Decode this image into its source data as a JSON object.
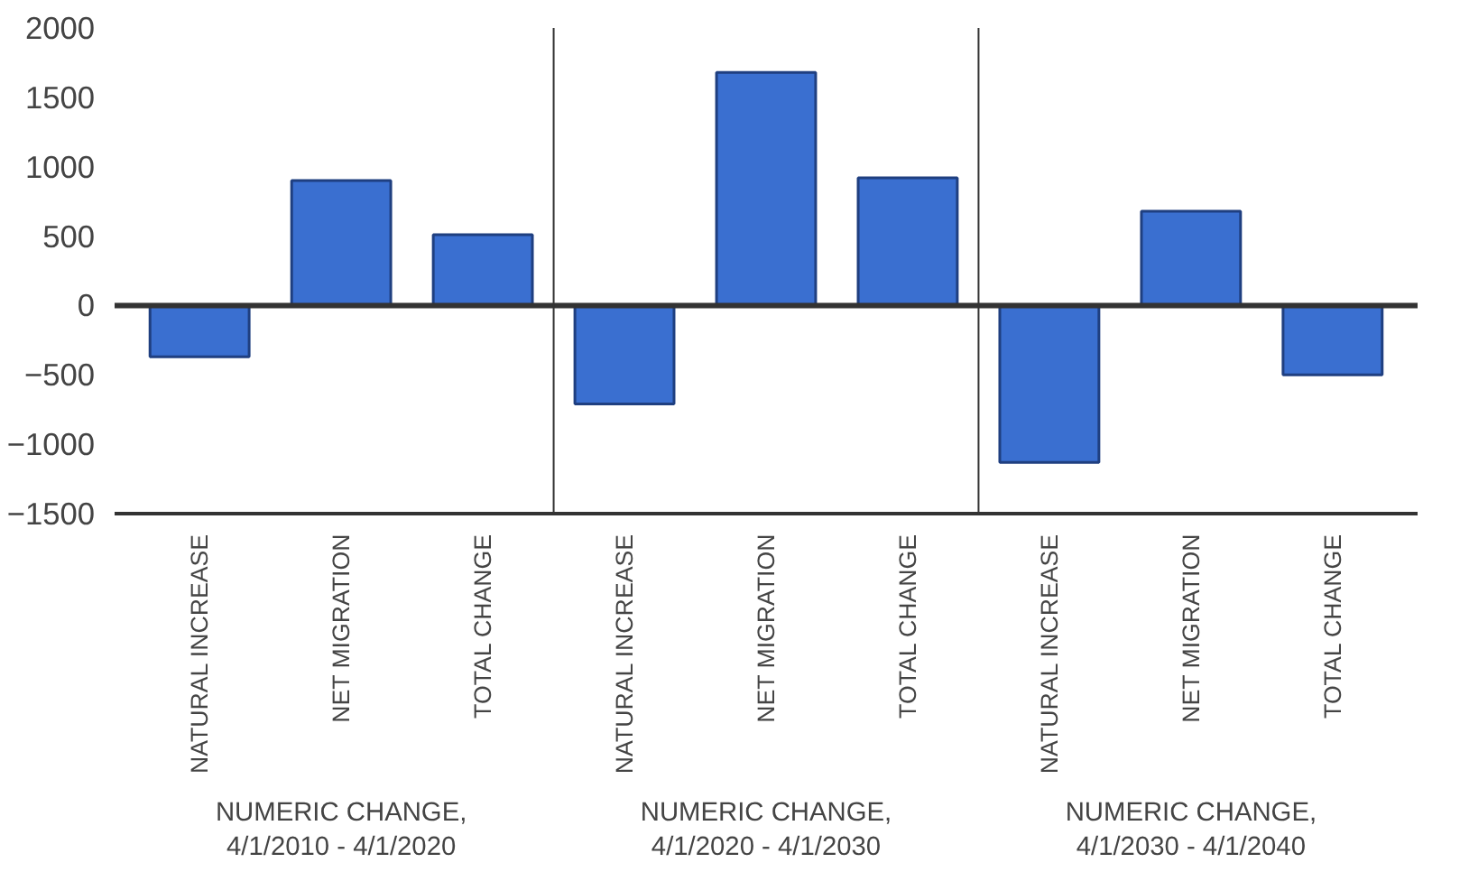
{
  "chart_data": {
    "type": "bar",
    "categories": [
      "NATURAL INCREASE",
      "NET MIGRATION",
      "TOTAL CHANGE",
      "NATURAL INCREASE",
      "NET MIGRATION",
      "TOTAL CHANGE",
      "NATURAL INCREASE",
      "NET MIGRATION",
      "TOTAL CHANGE"
    ],
    "values": [
      -370,
      900,
      510,
      -710,
      1680,
      920,
      -1130,
      680,
      -500
    ],
    "color": "#3a6fd0",
    "ylim": [
      -1500,
      2000
    ],
    "yticks": [
      -1500,
      -1000,
      -500,
      0,
      500,
      1000,
      1500,
      2000
    ],
    "grid": false,
    "annotations": [
      "NUMERIC CHANGE,\n4/1/2010 - 4/1/2020",
      "NUMERIC CHANGE,\n4/1/2020 - 4/1/2030",
      "NUMERIC CHANGE,\n4/1/2030 - 4/1/2040"
    ]
  }
}
